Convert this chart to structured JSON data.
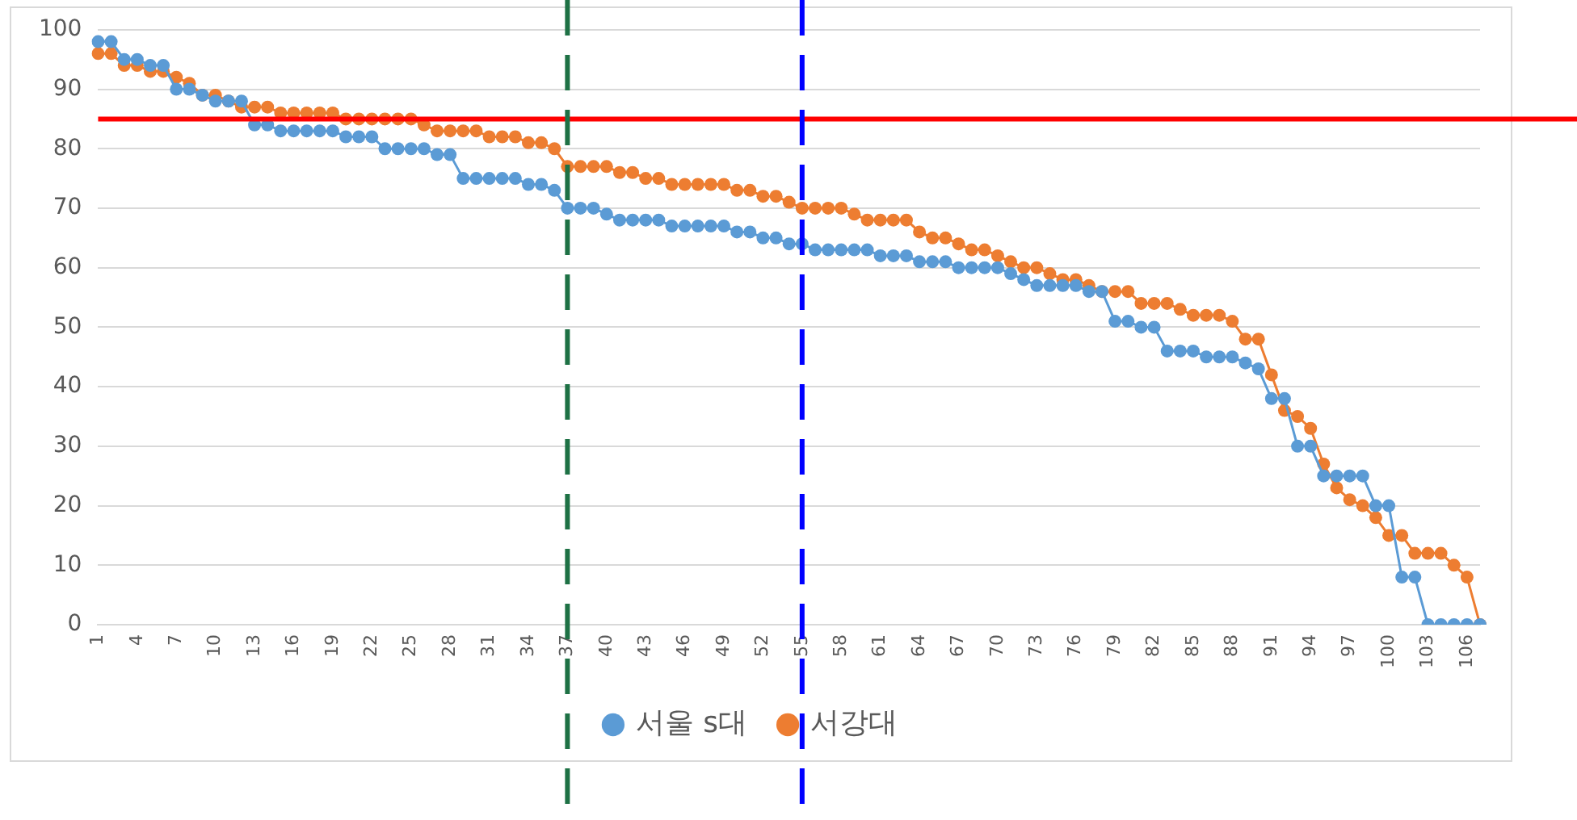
{
  "chart_data": {
    "type": "line",
    "categories": [
      "1",
      null,
      null,
      "4",
      null,
      null,
      "7",
      null,
      null,
      "10",
      null,
      null,
      "13",
      null,
      null,
      "16",
      null,
      null,
      "19",
      null,
      null,
      "22",
      null,
      null,
      "25",
      null,
      null,
      "28",
      null,
      null,
      "31",
      null,
      null,
      "34",
      null,
      null,
      "37",
      null,
      null,
      "40",
      null,
      null,
      "43",
      null,
      null,
      "46",
      null,
      null,
      "49",
      null,
      null,
      "52",
      null,
      null,
      "55",
      null,
      null,
      "58",
      null,
      null,
      "61",
      null,
      null,
      "64",
      null,
      null,
      "67",
      null,
      null,
      "70",
      null,
      null,
      "73",
      null,
      null,
      "76",
      null,
      null,
      "79",
      null,
      null,
      "82",
      null,
      null,
      "85",
      null,
      null,
      "88",
      null,
      null,
      "91",
      null,
      null,
      "94",
      null,
      null,
      "97",
      null,
      null,
      "100",
      null,
      null,
      "103",
      null,
      null,
      "106",
      null
    ],
    "series": [
      {
        "name": "서울 s대",
        "color": "#5b9bd5",
        "values": [
          98,
          98,
          95,
          95,
          94,
          94,
          90,
          90,
          89,
          88,
          88,
          88,
          84,
          84,
          83,
          83,
          83,
          83,
          83,
          82,
          82,
          82,
          80,
          80,
          80,
          80,
          79,
          79,
          75,
          75,
          75,
          75,
          75,
          74,
          74,
          73,
          70,
          70,
          70,
          69,
          68,
          68,
          68,
          68,
          67,
          67,
          67,
          67,
          67,
          66,
          66,
          65,
          65,
          64,
          64,
          63,
          63,
          63,
          63,
          63,
          62,
          62,
          62,
          61,
          61,
          61,
          60,
          60,
          60,
          60,
          59,
          58,
          57,
          57,
          57,
          57,
          56,
          56,
          51,
          51,
          50,
          50,
          46,
          46,
          46,
          45,
          45,
          45,
          44,
          43,
          38,
          38,
          30,
          30,
          25,
          25,
          25,
          25,
          20,
          20,
          8,
          8,
          0,
          0,
          0,
          0,
          0
        ]
      },
      {
        "name": "서강대",
        "color": "#ed7d31",
        "values": [
          96,
          96,
          94,
          94,
          93,
          93,
          92,
          91,
          89,
          89,
          88,
          87,
          87,
          87,
          86,
          86,
          86,
          86,
          86,
          85,
          85,
          85,
          85,
          85,
          85,
          84,
          83,
          83,
          83,
          83,
          82,
          82,
          82,
          81,
          81,
          80,
          77,
          77,
          77,
          77,
          76,
          76,
          75,
          75,
          74,
          74,
          74,
          74,
          74,
          73,
          73,
          72,
          72,
          71,
          70,
          70,
          70,
          70,
          69,
          68,
          68,
          68,
          68,
          66,
          65,
          65,
          64,
          63,
          63,
          62,
          61,
          60,
          60,
          59,
          58,
          58,
          57,
          56,
          56,
          56,
          54,
          54,
          54,
          53,
          52,
          52,
          52,
          51,
          48,
          48,
          42,
          36,
          35,
          33,
          27,
          23,
          21,
          20,
          18,
          15,
          15,
          12,
          12,
          12,
          10,
          8,
          0
        ]
      }
    ],
    "ylim": [
      0,
      100
    ],
    "yticks": [
      0,
      10,
      20,
      30,
      40,
      50,
      60,
      70,
      80,
      90,
      100
    ],
    "grid": "y",
    "legend": "bottom",
    "marker": "circle",
    "ref_lines": [
      {
        "axis": "y",
        "value": 85,
        "color": "#ff0000",
        "line_style": "solid"
      },
      {
        "axis": "x",
        "value": "37",
        "color": "#1e7145",
        "line_style": "dashed"
      },
      {
        "axis": "x",
        "value": "55",
        "color": "#0000ff",
        "line_style": "dashed"
      }
    ]
  }
}
